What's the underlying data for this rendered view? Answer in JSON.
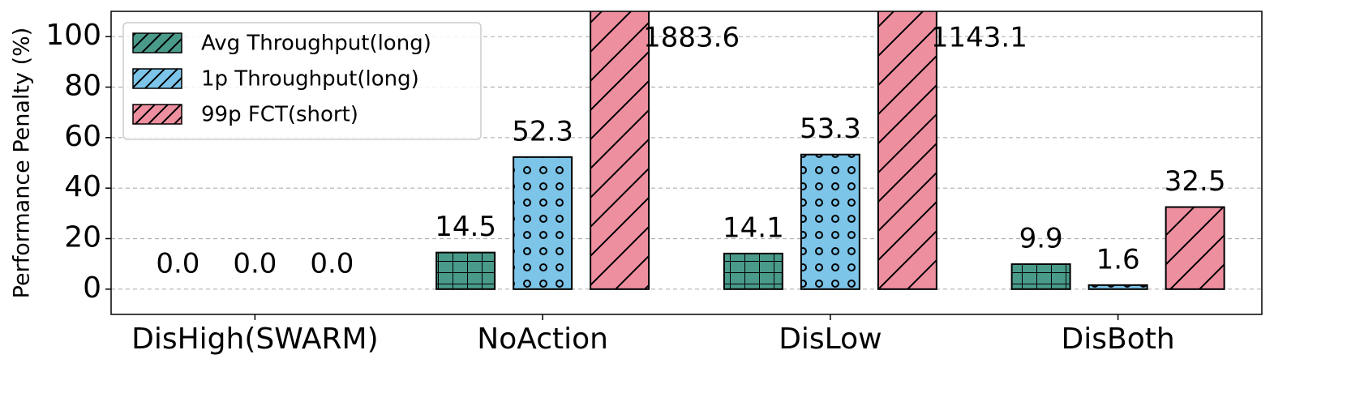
{
  "chart_data": {
    "type": "bar",
    "ylabel": "Performance Penalty (%)",
    "categories": [
      "DisHigh(SWARM)",
      "NoAction",
      "DisLow",
      "DisBoth"
    ],
    "series": [
      {
        "name": "Avg Throughput(long)",
        "color": "#4a9a8a",
        "hatch": "grid",
        "values": [
          0,
          14.5,
          14.1,
          9.9
        ],
        "value_labels": [
          "0.0",
          "14.5",
          "14.1",
          "9.9"
        ]
      },
      {
        "name": "1p Throughput(long)",
        "color": "#7cc4e8",
        "hatch": "dots",
        "values": [
          0,
          52.3,
          53.3,
          1.6
        ],
        "value_labels": [
          "0.0",
          "52.3",
          "53.3",
          "1.6"
        ]
      },
      {
        "name": "99p FCT(short)",
        "color": "#ee8fa0",
        "hatch": "diagonal",
        "values": [
          0,
          1883.6,
          1143.1,
          32.5
        ],
        "value_labels": [
          "0.0",
          "1883.6",
          "1143.1",
          "32.5"
        ]
      }
    ],
    "ylim": [
      -10,
      110
    ],
    "yticks": [
      0,
      20,
      40,
      60,
      80,
      100
    ],
    "grid": true,
    "legend": "upper left"
  }
}
